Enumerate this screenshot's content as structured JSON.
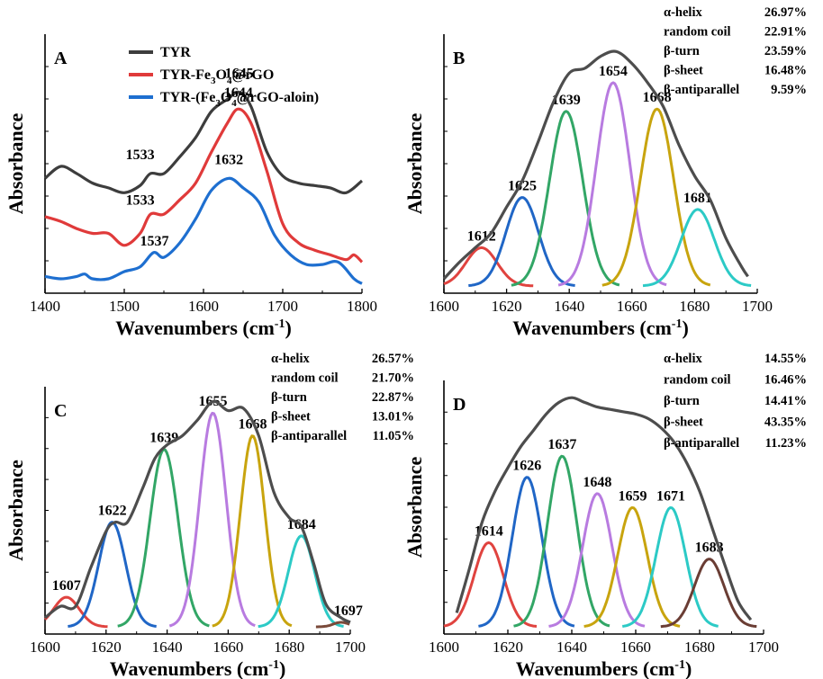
{
  "chart_data": [
    {
      "panel_label": "A",
      "type": "line",
      "xlabel": "Wavenumbers (cm",
      "xlabel_sup": "-1",
      "xlabel_close": ")",
      "ylabel": "Absorbance",
      "xlim": [
        1400,
        1800
      ],
      "ylim": [
        0,
        1
      ],
      "xticks": [
        1400,
        1500,
        1600,
        1700,
        1800
      ],
      "legend_position": "top-left",
      "legend": [
        {
          "parts": [
            {
              "t": "TYR"
            }
          ],
          "color": "#3d3d3d"
        },
        {
          "parts": [
            {
              "t": "TYR-Fe"
            },
            {
              "t": "3",
              "sub": true
            },
            {
              "t": "O"
            },
            {
              "t": "4",
              "sub": true
            },
            {
              "t": "@rGO"
            }
          ],
          "color": "#e03a3a"
        },
        {
          "parts": [
            {
              "t": "TYR-(Fe"
            },
            {
              "t": "3",
              "sub": true
            },
            {
              "t": "O"
            },
            {
              "t": "4",
              "sub": true
            },
            {
              "t": "@rGO-aloin)"
            }
          ],
          "color": "#1e6fd0"
        }
      ],
      "series": [
        {
          "name": "TYR",
          "color": "#3d3d3d",
          "x": [
            1400,
            1420,
            1440,
            1460,
            1480,
            1500,
            1520,
            1533,
            1550,
            1570,
            1590,
            1610,
            1630,
            1645,
            1660,
            1680,
            1700,
            1720,
            1740,
            1760,
            1780,
            1800
          ],
          "y": [
            0.45,
            0.5,
            0.47,
            0.43,
            0.41,
            0.39,
            0.42,
            0.47,
            0.47,
            0.54,
            0.62,
            0.73,
            0.78,
            0.81,
            0.75,
            0.56,
            0.46,
            0.43,
            0.42,
            0.41,
            0.39,
            0.44
          ]
        },
        {
          "name": "TYR-Fe3O4@rGO",
          "color": "#e03a3a",
          "x": [
            1400,
            1420,
            1440,
            1460,
            1480,
            1500,
            1520,
            1533,
            1550,
            1570,
            1590,
            1610,
            1630,
            1644,
            1660,
            1680,
            1700,
            1720,
            1740,
            1760,
            1780,
            1790,
            1800
          ],
          "y": [
            0.29,
            0.27,
            0.24,
            0.22,
            0.22,
            0.17,
            0.22,
            0.3,
            0.3,
            0.36,
            0.43,
            0.56,
            0.68,
            0.74,
            0.68,
            0.48,
            0.26,
            0.18,
            0.15,
            0.13,
            0.11,
            0.13,
            0.1
          ]
        },
        {
          "name": "TYR-(Fe3O4@rGO-aloin)",
          "color": "#1e6fd0",
          "x": [
            1400,
            1420,
            1440,
            1450,
            1460,
            1480,
            1500,
            1520,
            1537,
            1550,
            1570,
            1590,
            1610,
            1632,
            1650,
            1670,
            1690,
            1710,
            1730,
            1750,
            1770,
            1790,
            1800
          ],
          "y": [
            0.04,
            0.03,
            0.04,
            0.05,
            0.03,
            0.03,
            0.06,
            0.08,
            0.14,
            0.12,
            0.18,
            0.28,
            0.4,
            0.45,
            0.41,
            0.35,
            0.21,
            0.13,
            0.09,
            0.09,
            0.1,
            0.03,
            0.01
          ]
        }
      ],
      "annotations": [
        {
          "text": "1645",
          "x": 1645,
          "y": 0.87
        },
        {
          "text": "1644",
          "x": 1644,
          "y": 0.79
        },
        {
          "text": "1632",
          "x": 1632,
          "y": 0.51
        },
        {
          "text": "1533",
          "x": 1520,
          "y": 0.53
        },
        {
          "text": "1533",
          "x": 1520,
          "y": 0.34
        },
        {
          "text": "1537",
          "x": 1538,
          "y": 0.17
        }
      ]
    },
    {
      "panel_label": "B",
      "type": "area",
      "xlabel": "Wavenumbers (cm",
      "xlabel_sup": "-1",
      "xlabel_close": ")",
      "ylabel": "Absorbance",
      "xlim": [
        1600,
        1700
      ],
      "ylim": [
        0,
        1
      ],
      "xticks": [
        1600,
        1620,
        1640,
        1660,
        1680,
        1700
      ],
      "envelope": {
        "color": "#4d4d4d",
        "x": [
          1600,
          1605,
          1610,
          1615,
          1620,
          1625,
          1630,
          1635,
          1640,
          1645,
          1650,
          1655,
          1660,
          1665,
          1670,
          1675,
          1680,
          1685,
          1690,
          1695,
          1697
        ],
        "y": [
          0.03,
          0.1,
          0.16,
          0.22,
          0.33,
          0.44,
          0.6,
          0.77,
          0.89,
          0.91,
          0.96,
          0.98,
          0.93,
          0.85,
          0.75,
          0.59,
          0.46,
          0.36,
          0.2,
          0.08,
          0.04
        ]
      },
      "series": [
        {
          "name": "1612",
          "center": 1612,
          "height": 0.16,
          "sigma": 5.0,
          "color": "#e0433f"
        },
        {
          "name": "1625",
          "center": 1625,
          "height": 0.37,
          "sigma": 5.2,
          "color": "#2066c6"
        },
        {
          "name": "1639",
          "center": 1639,
          "height": 0.73,
          "sigma": 5.3,
          "color": "#32a666"
        },
        {
          "name": "1654",
          "center": 1654,
          "height": 0.85,
          "sigma": 5.3,
          "color": "#b87be0"
        },
        {
          "name": "1668",
          "center": 1668,
          "height": 0.74,
          "sigma": 5.3,
          "color": "#c8a40e"
        },
        {
          "name": "1681",
          "center": 1681,
          "height": 0.32,
          "sigma": 5.3,
          "color": "#2ccac6"
        }
      ],
      "composition": [
        {
          "label": "α-helix",
          "value": "26.97%"
        },
        {
          "label": "random coil",
          "value": "22.91%"
        },
        {
          "label": "β-turn",
          "value": "23.59%"
        },
        {
          "label": "β-sheet",
          "value": "16.48%"
        },
        {
          "label": "β-antiparallel",
          "value": "9.59%"
        }
      ]
    },
    {
      "panel_label": "C",
      "type": "area",
      "xlabel": "Wavenumbers (cm",
      "xlabel_sup": "-1",
      "xlabel_close": ")",
      "ylabel": "Absorbance",
      "xlim": [
        1600,
        1700
      ],
      "ylim": [
        0,
        1
      ],
      "xticks": [
        1600,
        1620,
        1640,
        1660,
        1680,
        1700
      ],
      "envelope": {
        "color": "#4d4d4d",
        "x": [
          1600,
          1605,
          1610,
          1615,
          1620,
          1623,
          1627,
          1632,
          1636,
          1640,
          1645,
          1650,
          1655,
          1660,
          1665,
          1670,
          1675,
          1680,
          1684,
          1688,
          1692,
          1697,
          1700
        ],
        "y": [
          0.04,
          0.09,
          0.09,
          0.26,
          0.42,
          0.46,
          0.46,
          0.61,
          0.74,
          0.8,
          0.84,
          0.91,
          0.99,
          0.95,
          0.96,
          0.84,
          0.59,
          0.48,
          0.44,
          0.28,
          0.1,
          0.04,
          0.02
        ]
      },
      "series": [
        {
          "name": "1607",
          "center": 1607,
          "height": 0.13,
          "sigma": 4.2,
          "color": "#e0433f"
        },
        {
          "name": "1622",
          "center": 1622,
          "height": 0.46,
          "sigma": 4.4,
          "color": "#2066c6"
        },
        {
          "name": "1639",
          "center": 1639,
          "height": 0.78,
          "sigma": 4.6,
          "color": "#32a666"
        },
        {
          "name": "1655",
          "center": 1655,
          "height": 0.94,
          "sigma": 4.3,
          "color": "#b87be0"
        },
        {
          "name": "1668",
          "center": 1668,
          "height": 0.84,
          "sigma": 4.0,
          "color": "#c8a40e"
        },
        {
          "name": "1684",
          "center": 1684,
          "height": 0.4,
          "sigma": 4.3,
          "color": "#2ccac6"
        },
        {
          "name": "1697",
          "center": 1697,
          "height": 0.02,
          "sigma": 2.5,
          "color": "#7a4a3a"
        }
      ],
      "composition": [
        {
          "label": "α-helix",
          "value": "26.57%"
        },
        {
          "label": "random coil",
          "value": "21.70%"
        },
        {
          "label": "β-turn",
          "value": "22.87%"
        },
        {
          "label": "β-sheet",
          "value": "13.01%"
        },
        {
          "label": "β-antiparallel",
          "value": "11.05%"
        }
      ]
    },
    {
      "panel_label": "D",
      "type": "area",
      "xlabel": "Wavenumbers (cm",
      "xlabel_sup": "-1",
      "xlabel_close": ")",
      "ylabel": "Absorbance",
      "xlim": [
        1600,
        1700
      ],
      "ylim": [
        0,
        1
      ],
      "xticks": [
        1600,
        1620,
        1640,
        1660,
        1680,
        1700
      ],
      "envelope": {
        "color": "#4d4d4d",
        "x": [
          1604,
          1608,
          1612,
          1616,
          1620,
          1624,
          1628,
          1632,
          1636,
          1640,
          1644,
          1648,
          1652,
          1656,
          1660,
          1664,
          1668,
          1672,
          1676,
          1680,
          1684,
          1688,
          1692,
          1696
        ],
        "y": [
          0.06,
          0.25,
          0.45,
          0.58,
          0.68,
          0.77,
          0.84,
          0.91,
          0.96,
          0.98,
          0.96,
          0.94,
          0.93,
          0.92,
          0.91,
          0.89,
          0.85,
          0.79,
          0.7,
          0.58,
          0.42,
          0.26,
          0.11,
          0.03
        ]
      },
      "series": [
        {
          "name": "1614",
          "center": 1614,
          "height": 0.36,
          "sigma": 4.6,
          "color": "#e0433f"
        },
        {
          "name": "1626",
          "center": 1626,
          "height": 0.64,
          "sigma": 4.6,
          "color": "#2066c6"
        },
        {
          "name": "1637",
          "center": 1637,
          "height": 0.73,
          "sigma": 4.6,
          "color": "#32a666"
        },
        {
          "name": "1648",
          "center": 1648,
          "height": 0.57,
          "sigma": 4.6,
          "color": "#b87be0"
        },
        {
          "name": "1659",
          "center": 1659,
          "height": 0.51,
          "sigma": 4.6,
          "color": "#c8a40e"
        },
        {
          "name": "1671",
          "center": 1671,
          "height": 0.51,
          "sigma": 4.6,
          "color": "#2ccac6"
        },
        {
          "name": "1683",
          "center": 1683,
          "height": 0.29,
          "sigma": 4.6,
          "color": "#6a3d34"
        }
      ],
      "composition": [
        {
          "label": "α-helix",
          "value": "14.55%"
        },
        {
          "label": "random coil",
          "value": "16.46%"
        },
        {
          "label": "β-turn",
          "value": "14.41%"
        },
        {
          "label": "β-sheet",
          "value": "43.35%"
        },
        {
          "label": "β-antiparallel",
          "value": "11.23%"
        }
      ]
    }
  ]
}
